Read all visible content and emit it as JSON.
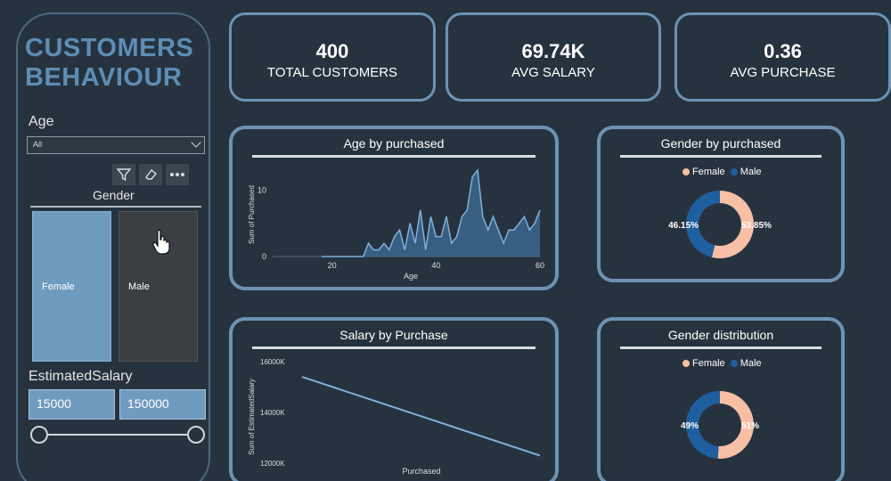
{
  "sidebar": {
    "title_line1": "CUSTOMERS",
    "title_line2": "BEHAVIOUR",
    "age_label": "Age",
    "age_select_value": "All",
    "gender_label": "Gender",
    "gender_options": [
      "Female",
      "Male"
    ],
    "salary_label": "EstimatedSalary",
    "salary_min": "15000",
    "salary_max": "150000"
  },
  "kpis": [
    {
      "value": "400",
      "caption": "TOTAL CUSTOMERS"
    },
    {
      "value": "69.74K",
      "caption": "AVG SALARY"
    },
    {
      "value": "0.36",
      "caption": "AVG PURCHASE"
    }
  ],
  "colors": {
    "accent": "#6b93b5",
    "female": "#f6bfa6",
    "male": "#1f5fa0",
    "area": "#3f6f9a"
  },
  "chart_data": [
    {
      "type": "area",
      "title": "Age by purchased",
      "xlabel": "Age",
      "ylabel": "Sum of Purchased",
      "xlim": [
        18,
        60
      ],
      "ylim": [
        0,
        13
      ],
      "x_ticks": [
        "20",
        "40",
        "60"
      ],
      "y_ticks": [
        "0",
        "10"
      ],
      "x": [
        18,
        19,
        20,
        21,
        22,
        23,
        24,
        25,
        26,
        27,
        28,
        29,
        30,
        31,
        32,
        33,
        34,
        35,
        36,
        37,
        38,
        39,
        40,
        41,
        42,
        43,
        44,
        45,
        46,
        47,
        48,
        49,
        50,
        51,
        52,
        53,
        54,
        55,
        56,
        57,
        58,
        59,
        60
      ],
      "values": [
        0,
        0,
        0,
        0,
        0,
        0,
        0,
        0,
        0,
        2,
        1,
        1,
        2,
        1,
        3,
        4,
        1,
        5,
        2,
        7,
        1,
        6,
        3,
        3,
        6,
        2,
        3,
        6,
        7,
        12,
        13,
        6,
        4,
        6,
        4,
        2,
        4,
        4,
        5,
        6,
        4,
        5,
        7
      ]
    },
    {
      "type": "pie",
      "title": "Gender by purchased",
      "legend": [
        "Female",
        "Male"
      ],
      "values": [
        53.85,
        46.15
      ],
      "labels": [
        "53.85%",
        "46.15%"
      ]
    },
    {
      "type": "line",
      "title": "Salary by Purchase",
      "xlabel": "Purchased",
      "ylabel": "Sum of EstimatedSalary",
      "ylim": [
        12000,
        16000
      ],
      "y_ticks": [
        "16000K",
        "14000K",
        "12000K"
      ],
      "x": [
        0,
        1
      ],
      "values": [
        15400,
        12300
      ]
    },
    {
      "type": "pie",
      "title": "Gender distribution",
      "legend": [
        "Female",
        "Male"
      ],
      "values": [
        51,
        49
      ],
      "labels": [
        "51%",
        "49%"
      ]
    }
  ]
}
